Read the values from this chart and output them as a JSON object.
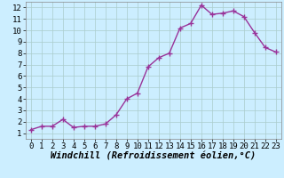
{
  "x": [
    0,
    1,
    2,
    3,
    4,
    5,
    6,
    7,
    8,
    9,
    10,
    11,
    12,
    13,
    14,
    15,
    16,
    17,
    18,
    19,
    20,
    21,
    22,
    23
  ],
  "y": [
    1.3,
    1.6,
    1.6,
    2.2,
    1.5,
    1.6,
    1.6,
    1.8,
    2.6,
    4.0,
    4.5,
    6.8,
    7.6,
    8.0,
    10.2,
    10.6,
    12.2,
    11.4,
    11.5,
    11.7,
    11.2,
    9.8,
    8.5,
    8.1
  ],
  "line_color": "#993399",
  "marker": "+",
  "marker_size": 4,
  "marker_lw": 1.0,
  "bg_color": "#cceeff",
  "grid_color": "#aacccc",
  "xlabel": "Windchill (Refroidissement éolien,°C)",
  "ylim": [
    0.5,
    12.5
  ],
  "xlim": [
    -0.5,
    23.5
  ],
  "yticks": [
    1,
    2,
    3,
    4,
    5,
    6,
    7,
    8,
    9,
    10,
    11,
    12
  ],
  "xticks": [
    0,
    1,
    2,
    3,
    4,
    5,
    6,
    7,
    8,
    9,
    10,
    11,
    12,
    13,
    14,
    15,
    16,
    17,
    18,
    19,
    20,
    21,
    22,
    23
  ],
  "xlabel_fontsize": 7.5,
  "tick_fontsize": 6.5,
  "line_width": 1.0
}
